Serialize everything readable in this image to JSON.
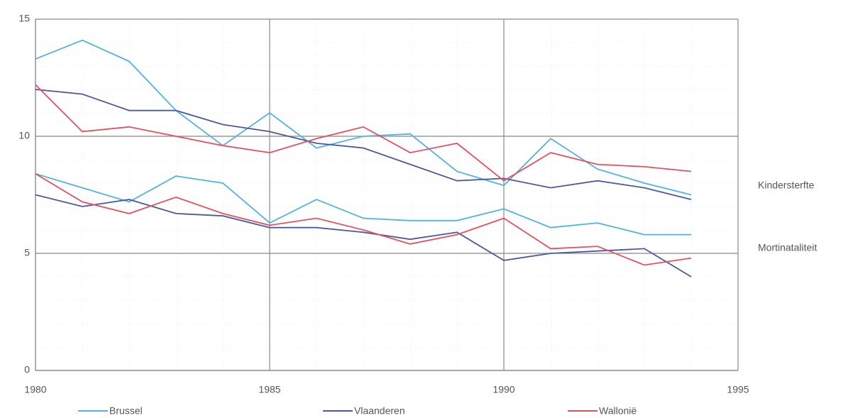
{
  "chart_data": {
    "type": "line",
    "x": [
      1980,
      1981,
      1982,
      1983,
      1984,
      1985,
      1986,
      1987,
      1988,
      1989,
      1990,
      1991,
      1992,
      1993,
      1994
    ],
    "xlim": [
      1980,
      1995
    ],
    "xticks": [
      1980,
      1985,
      1990,
      1995
    ],
    "ylim": [
      0,
      15
    ],
    "yticks": [
      0,
      5,
      10,
      15
    ],
    "grid": true,
    "line_labels": [
      "Kindersterfte",
      "Mortinataliteit"
    ],
    "series": [
      {
        "name": "Brussel",
        "color": "#4fb3e8",
        "values": [
          [
            13.3,
            14.1,
            13.2,
            11.1,
            9.6,
            11.0,
            9.5,
            10.0,
            10.1,
            8.5,
            7.9,
            9.9,
            8.6,
            8.0,
            7.5
          ],
          [
            8.4,
            7.8,
            7.2,
            8.3,
            8.0,
            6.3,
            7.3,
            6.5,
            6.4,
            6.4,
            6.9,
            6.1,
            6.3,
            5.8,
            5.8
          ]
        ]
      },
      {
        "name": "Vlaanderen",
        "color": "#4b5a9e",
        "values": [
          [
            12.0,
            11.8,
            11.1,
            11.1,
            10.5,
            10.2,
            9.7,
            9.5,
            8.8,
            8.1,
            8.2,
            7.8,
            8.1,
            7.8,
            7.3
          ],
          [
            7.5,
            7.0,
            7.3,
            6.7,
            6.6,
            6.1,
            6.1,
            5.9,
            5.6,
            5.9,
            4.7,
            5.0,
            5.1,
            5.2,
            4.0
          ]
        ]
      },
      {
        "name": "Wallonië",
        "color": "#e8505f",
        "values": [
          [
            12.2,
            10.2,
            10.4,
            10.0,
            9.6,
            9.3,
            9.9,
            10.4,
            9.3,
            9.7,
            8.1,
            9.3,
            8.8,
            8.7,
            8.5
          ],
          [
            8.4,
            7.2,
            6.7,
            7.4,
            6.7,
            6.2,
            6.5,
            6.0,
            5.4,
            5.8,
            6.5,
            5.2,
            5.3,
            4.5,
            4.8
          ]
        ]
      }
    ]
  }
}
